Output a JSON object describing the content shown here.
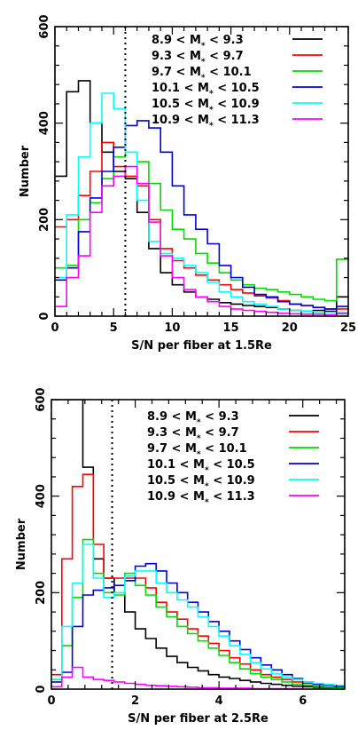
{
  "chart_data": [
    {
      "type": "histogram",
      "xlabel": "S/N per fiber at 1.5Re",
      "ylabel": "Number",
      "xlim": [
        0,
        25
      ],
      "ylim": [
        0,
        600
      ],
      "xticks": [
        0,
        5,
        10,
        15,
        20,
        25
      ],
      "yticks": [
        0,
        200,
        400,
        600
      ],
      "bin_width": 1,
      "bin_start": 0,
      "vline": 6,
      "legend_position": "top-right",
      "series": [
        {
          "name": "8.9 < M* < 9.3",
          "label_main": "8.9 < M",
          "label_rest": " < 9.3",
          "color": "#000000",
          "values": [
            290,
            465,
            488,
            400,
            340,
            300,
            285,
            215,
            140,
            90,
            65,
            50,
            40,
            35,
            28,
            25,
            22,
            20,
            18,
            15,
            12,
            10,
            12,
            10,
            40
          ]
        },
        {
          "name": "9.3 < M* < 9.7",
          "label_main": "9.3 < M",
          "label_rest": " < 9.7",
          "color": "#ff0000",
          "values": [
            185,
            200,
            250,
            300,
            360,
            310,
            290,
            270,
            200,
            140,
            115,
            100,
            85,
            75,
            65,
            55,
            48,
            42,
            38,
            32,
            25,
            22,
            18,
            15,
            15
          ]
        },
        {
          "name": "9.7 < M* < 10.1",
          "label_main": "9.7 < M",
          "label_rest": " < 10.1",
          "color": "#00dd00",
          "values": [
            100,
            105,
            200,
            235,
            285,
            330,
            340,
            320,
            275,
            220,
            180,
            160,
            130,
            110,
            90,
            75,
            65,
            58,
            55,
            50,
            45,
            40,
            35,
            32,
            118
          ]
        },
        {
          "name": "10.1 < M* < 10.5",
          "label_main": "10.1 < M",
          "label_rest": " < 10.5",
          "color": "#0000dd",
          "values": [
            75,
            100,
            175,
            245,
            300,
            350,
            395,
            405,
            390,
            340,
            270,
            210,
            180,
            150,
            105,
            80,
            60,
            45,
            40,
            30,
            25,
            22,
            18,
            15,
            20
          ]
        },
        {
          "name": "10.5 < M* < 10.9",
          "label_main": "10.5 < M",
          "label_rest": " < 10.9",
          "color": "#00ffff",
          "values": [
            80,
            210,
            330,
            400,
            462,
            430,
            340,
            240,
            155,
            130,
            120,
            105,
            90,
            70,
            50,
            40,
            30,
            25,
            20,
            15,
            12,
            10,
            8,
            8,
            8
          ]
        },
        {
          "name": "10.9 < M* < 11.3",
          "label_main": "10.9 < M",
          "label_rest": " < 11.3",
          "color": "#ff00ff",
          "values": [
            20,
            80,
            125,
            215,
            270,
            290,
            310,
            275,
            195,
            125,
            80,
            55,
            40,
            30,
            20,
            15,
            12,
            10,
            8,
            6,
            5,
            4,
            4,
            3,
            5
          ]
        }
      ]
    },
    {
      "type": "histogram",
      "xlabel": "S/N per fiber at 2.5Re",
      "ylabel": "Number",
      "xlim": [
        0,
        7
      ],
      "ylim": [
        0,
        600
      ],
      "xticks": [
        0,
        2,
        4,
        6
      ],
      "yticks": [
        0,
        200,
        400,
        600
      ],
      "bin_width": 0.25,
      "bin_start": 0,
      "vline": 1.45,
      "legend_position": "top-right",
      "series": [
        {
          "name": "8.9 < M* < 9.3",
          "label_main": "8.9 < M",
          "label_rest": " < 9.3",
          "color": "#000000",
          "values": [
            600,
            600,
            600,
            460,
            270,
            230,
            200,
            160,
            125,
            105,
            85,
            68,
            55,
            45,
            38,
            30,
            25,
            22,
            18,
            15,
            12,
            10,
            8,
            6,
            5,
            4,
            3,
            2
          ]
        },
        {
          "name": "9.3 < M* < 9.7",
          "label_main": "9.3 < M",
          "label_rest": " < 9.7",
          "color": "#ff0000",
          "values": [
            30,
            270,
            420,
            445,
            300,
            230,
            230,
            230,
            230,
            210,
            180,
            160,
            145,
            125,
            110,
            95,
            80,
            65,
            52,
            40,
            30,
            25,
            20,
            15,
            12,
            10,
            8,
            5
          ]
        },
        {
          "name": "9.7 < M* < 10.1",
          "label_main": "9.7 < M",
          "label_rest": " < 10.1",
          "color": "#00dd00",
          "values": [
            20,
            90,
            190,
            310,
            240,
            200,
            195,
            240,
            215,
            195,
            170,
            150,
            130,
            115,
            100,
            85,
            70,
            55,
            42,
            32,
            25,
            20,
            15,
            10,
            8,
            6,
            4,
            3
          ]
        },
        {
          "name": "10.1 < M* < 10.5",
          "label_main": "10.1 < M",
          "label_rest": " < 10.5",
          "color": "#0000dd",
          "values": [
            15,
            35,
            130,
            195,
            205,
            210,
            215,
            225,
            255,
            260,
            245,
            220,
            200,
            180,
            160,
            140,
            120,
            100,
            82,
            65,
            50,
            40,
            30,
            22,
            15,
            10,
            8,
            5
          ]
        },
        {
          "name": "10.5 < M* < 10.9",
          "label_main": "10.5 < M",
          "label_rest": " < 10.9",
          "color": "#00ffff",
          "values": [
            20,
            130,
            220,
            300,
            230,
            190,
            200,
            235,
            245,
            245,
            220,
            200,
            185,
            170,
            150,
            130,
            110,
            90,
            72,
            55,
            42,
            32,
            25,
            20,
            15,
            12,
            10,
            8
          ]
        },
        {
          "name": "10.9 < M* < 11.3",
          "label_main": "10.9 < M",
          "label_rest": " < 11.3",
          "color": "#ff00ff",
          "values": [
            5,
            25,
            45,
            25,
            20,
            18,
            15,
            12,
            10,
            8,
            7,
            6,
            5,
            4,
            3,
            3,
            2,
            2,
            2,
            1,
            1,
            1,
            1,
            1,
            0,
            0,
            0,
            0
          ]
        }
      ]
    }
  ]
}
